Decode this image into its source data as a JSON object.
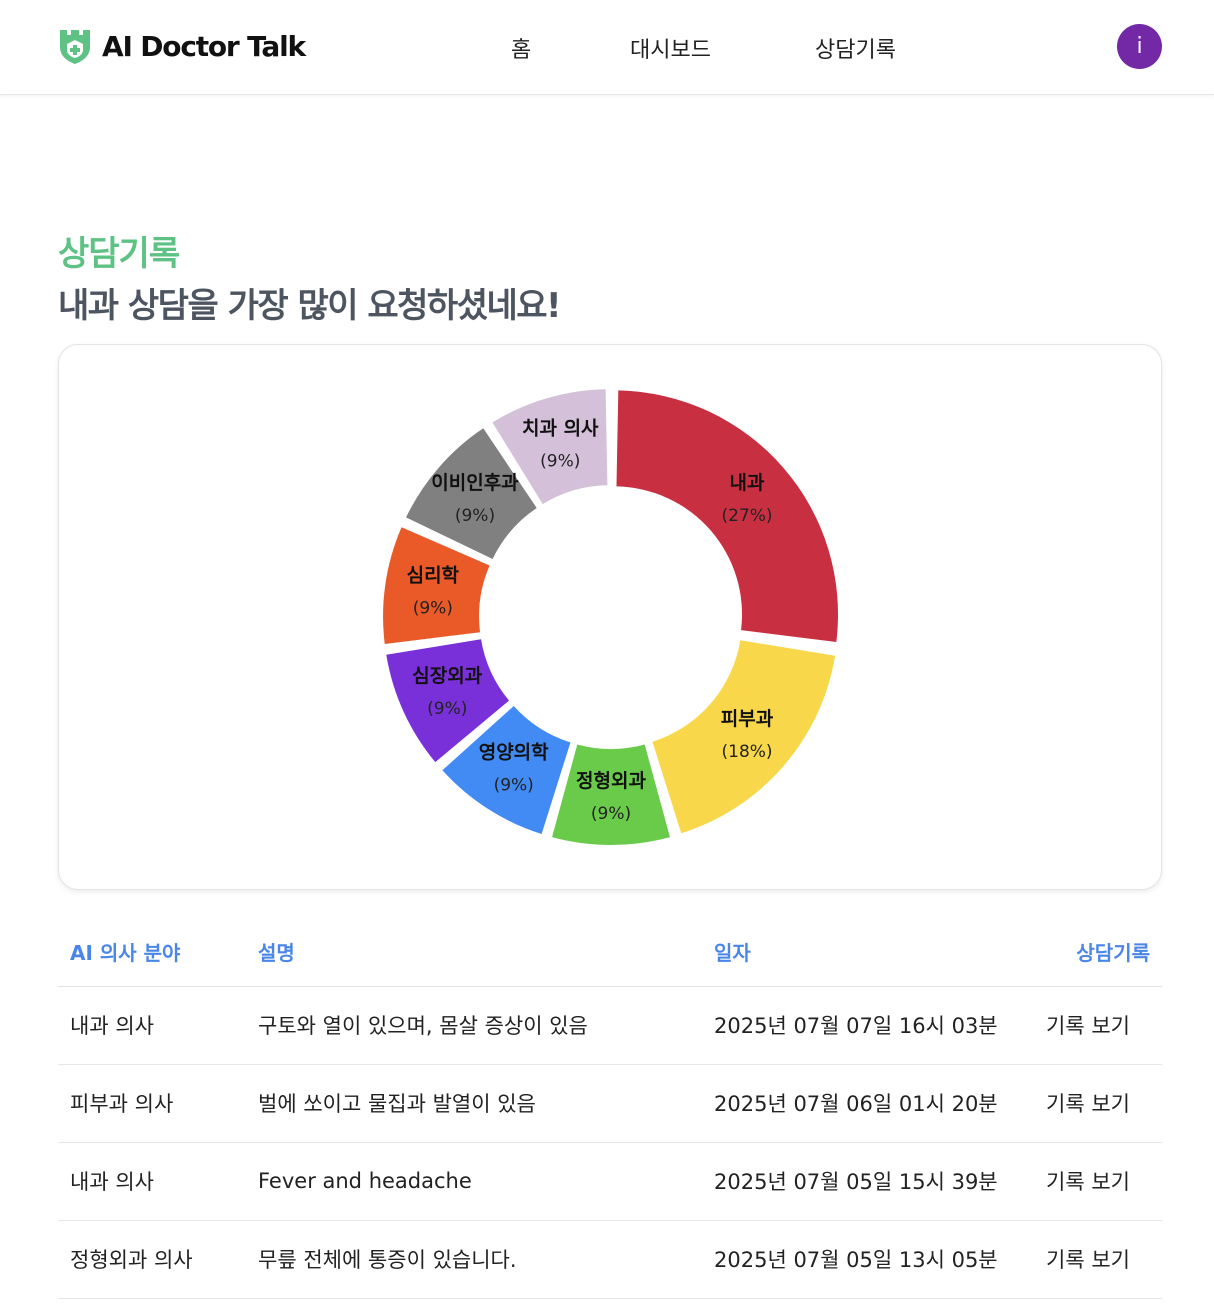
{
  "header": {
    "brand": "AI Doctor Talk",
    "nav": [
      "홈",
      "대시보드",
      "상담기록"
    ],
    "avatar_initial": "i"
  },
  "section": {
    "title": "상담기록",
    "subtitle": "내과 상담을 가장 많이 요청하셨네요!"
  },
  "chart_data": {
    "type": "pie",
    "donut": true,
    "categories": [
      "내과",
      "피부과",
      "정형외과",
      "영양의학",
      "심장외과",
      "심리학",
      "이비인후과",
      "치과 의사"
    ],
    "values": [
      27,
      18,
      9,
      9,
      9,
      9,
      9,
      9
    ],
    "labels": [
      "(27%)",
      "(18%)",
      "(9%)",
      "(9%)",
      "(9%)",
      "(9%)",
      "(9%)",
      "(9%)"
    ],
    "colors": [
      "#c83042",
      "#f8d84a",
      "#6acb4a",
      "#428bf5",
      "#7a30d8",
      "#ea5a28",
      "#808080",
      "#d4c0d8"
    ]
  },
  "table": {
    "headers": [
      "AI 의사 분야",
      "설명",
      "일자",
      "상담기록"
    ],
    "rows": [
      {
        "field": "내과 의사",
        "desc": "구토와 열이 있으며, 몸살 증상이 있음",
        "date": "2025년 07월 07일 16시 03분",
        "action": "기록 보기"
      },
      {
        "field": "피부과 의사",
        "desc": "벌에 쏘이고 물집과 발열이 있음",
        "date": "2025년 07월 06일 01시 20분",
        "action": "기록 보기"
      },
      {
        "field": "내과 의사",
        "desc": "Fever and headache",
        "date": "2025년 07월 05일 15시 39분",
        "action": "기록 보기"
      },
      {
        "field": "정형외과 의사",
        "desc": "무릎 전체에 통증이 있습니다.",
        "date": "2025년 07월 05일 13시 05분",
        "action": "기록 보기"
      }
    ]
  }
}
